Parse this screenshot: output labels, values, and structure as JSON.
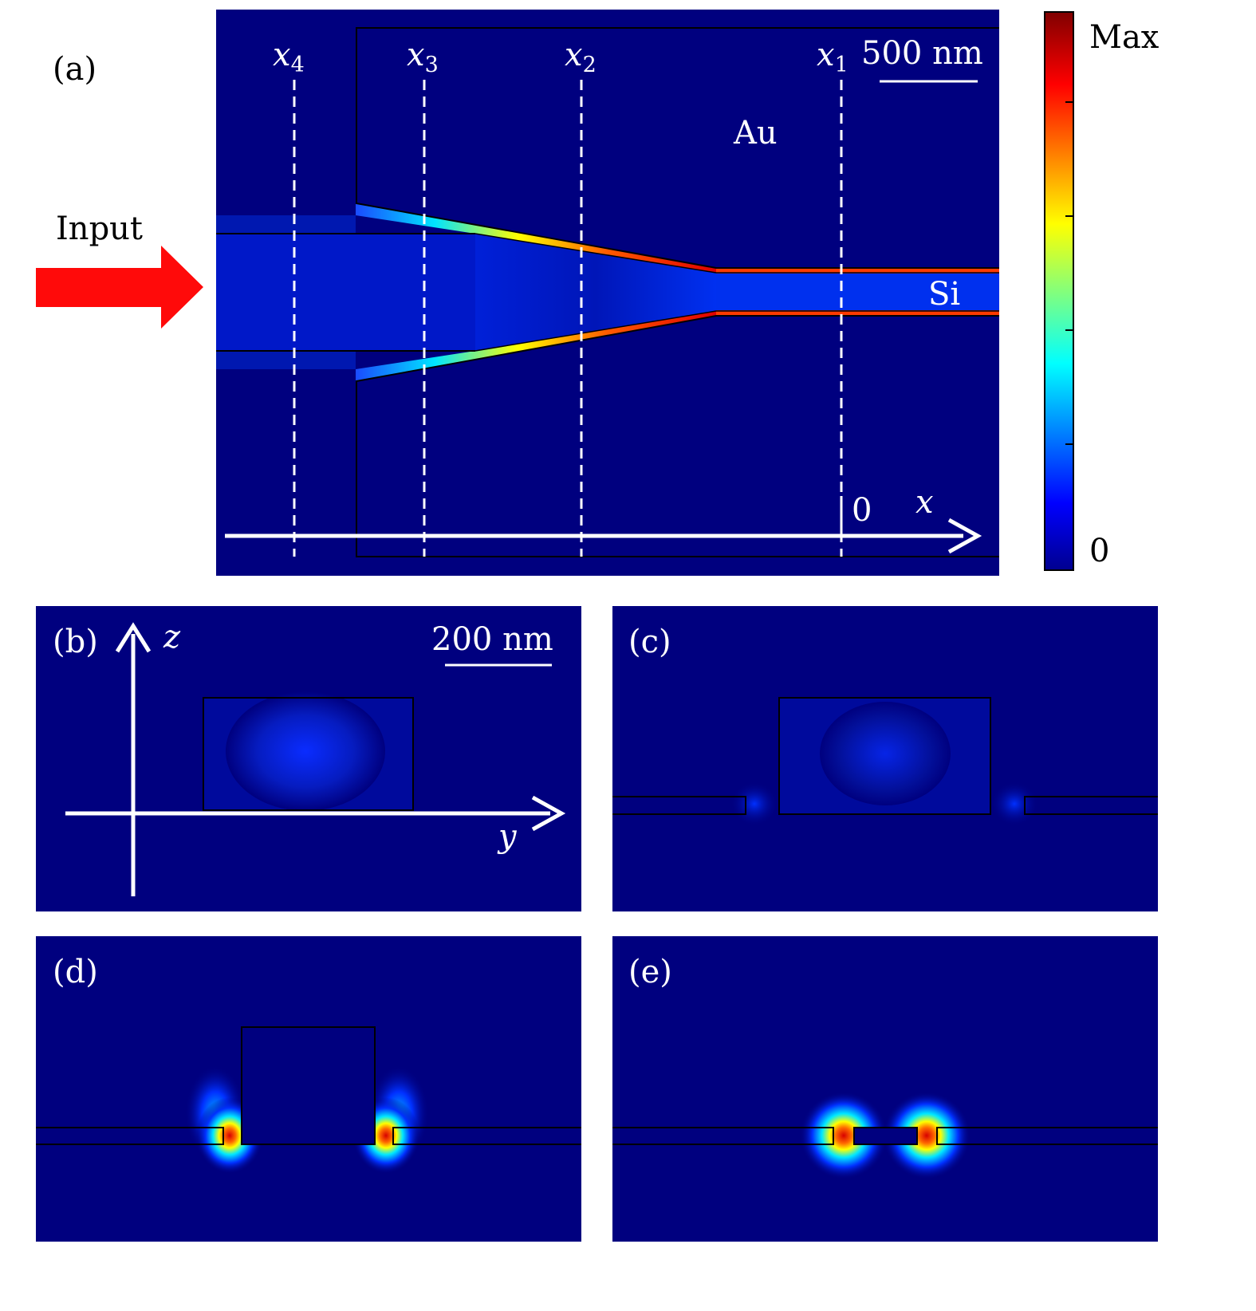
{
  "panel_a": {
    "label": "(a)",
    "input_label": "Input",
    "cuts": [
      {
        "name": "x",
        "sub": "4"
      },
      {
        "name": "x",
        "sub": "3"
      },
      {
        "name": "x",
        "sub": "2"
      },
      {
        "name": "x",
        "sub": "1"
      }
    ],
    "scale_bar": "500 nm",
    "material_top": "Au",
    "material_core": "Si",
    "axis_origin": "0",
    "axis_label": "x"
  },
  "colorbar": {
    "max_label": "Max",
    "min_label": "0",
    "colormap": "jet",
    "colors": [
      "#00008f",
      "#0000ff",
      "#00ffff",
      "#ffff00",
      "#ff0000",
      "#800000"
    ]
  },
  "panel_b": {
    "label": "(b)",
    "axis_z": "z",
    "axis_y": "y",
    "scale_bar": "200 nm"
  },
  "panel_c": {
    "label": "(c)"
  },
  "panel_d": {
    "label": "(d)"
  },
  "panel_e": {
    "label": "(e)"
  },
  "style": {
    "background_field": "#00007f",
    "input_arrow": "#ff0a0a"
  }
}
